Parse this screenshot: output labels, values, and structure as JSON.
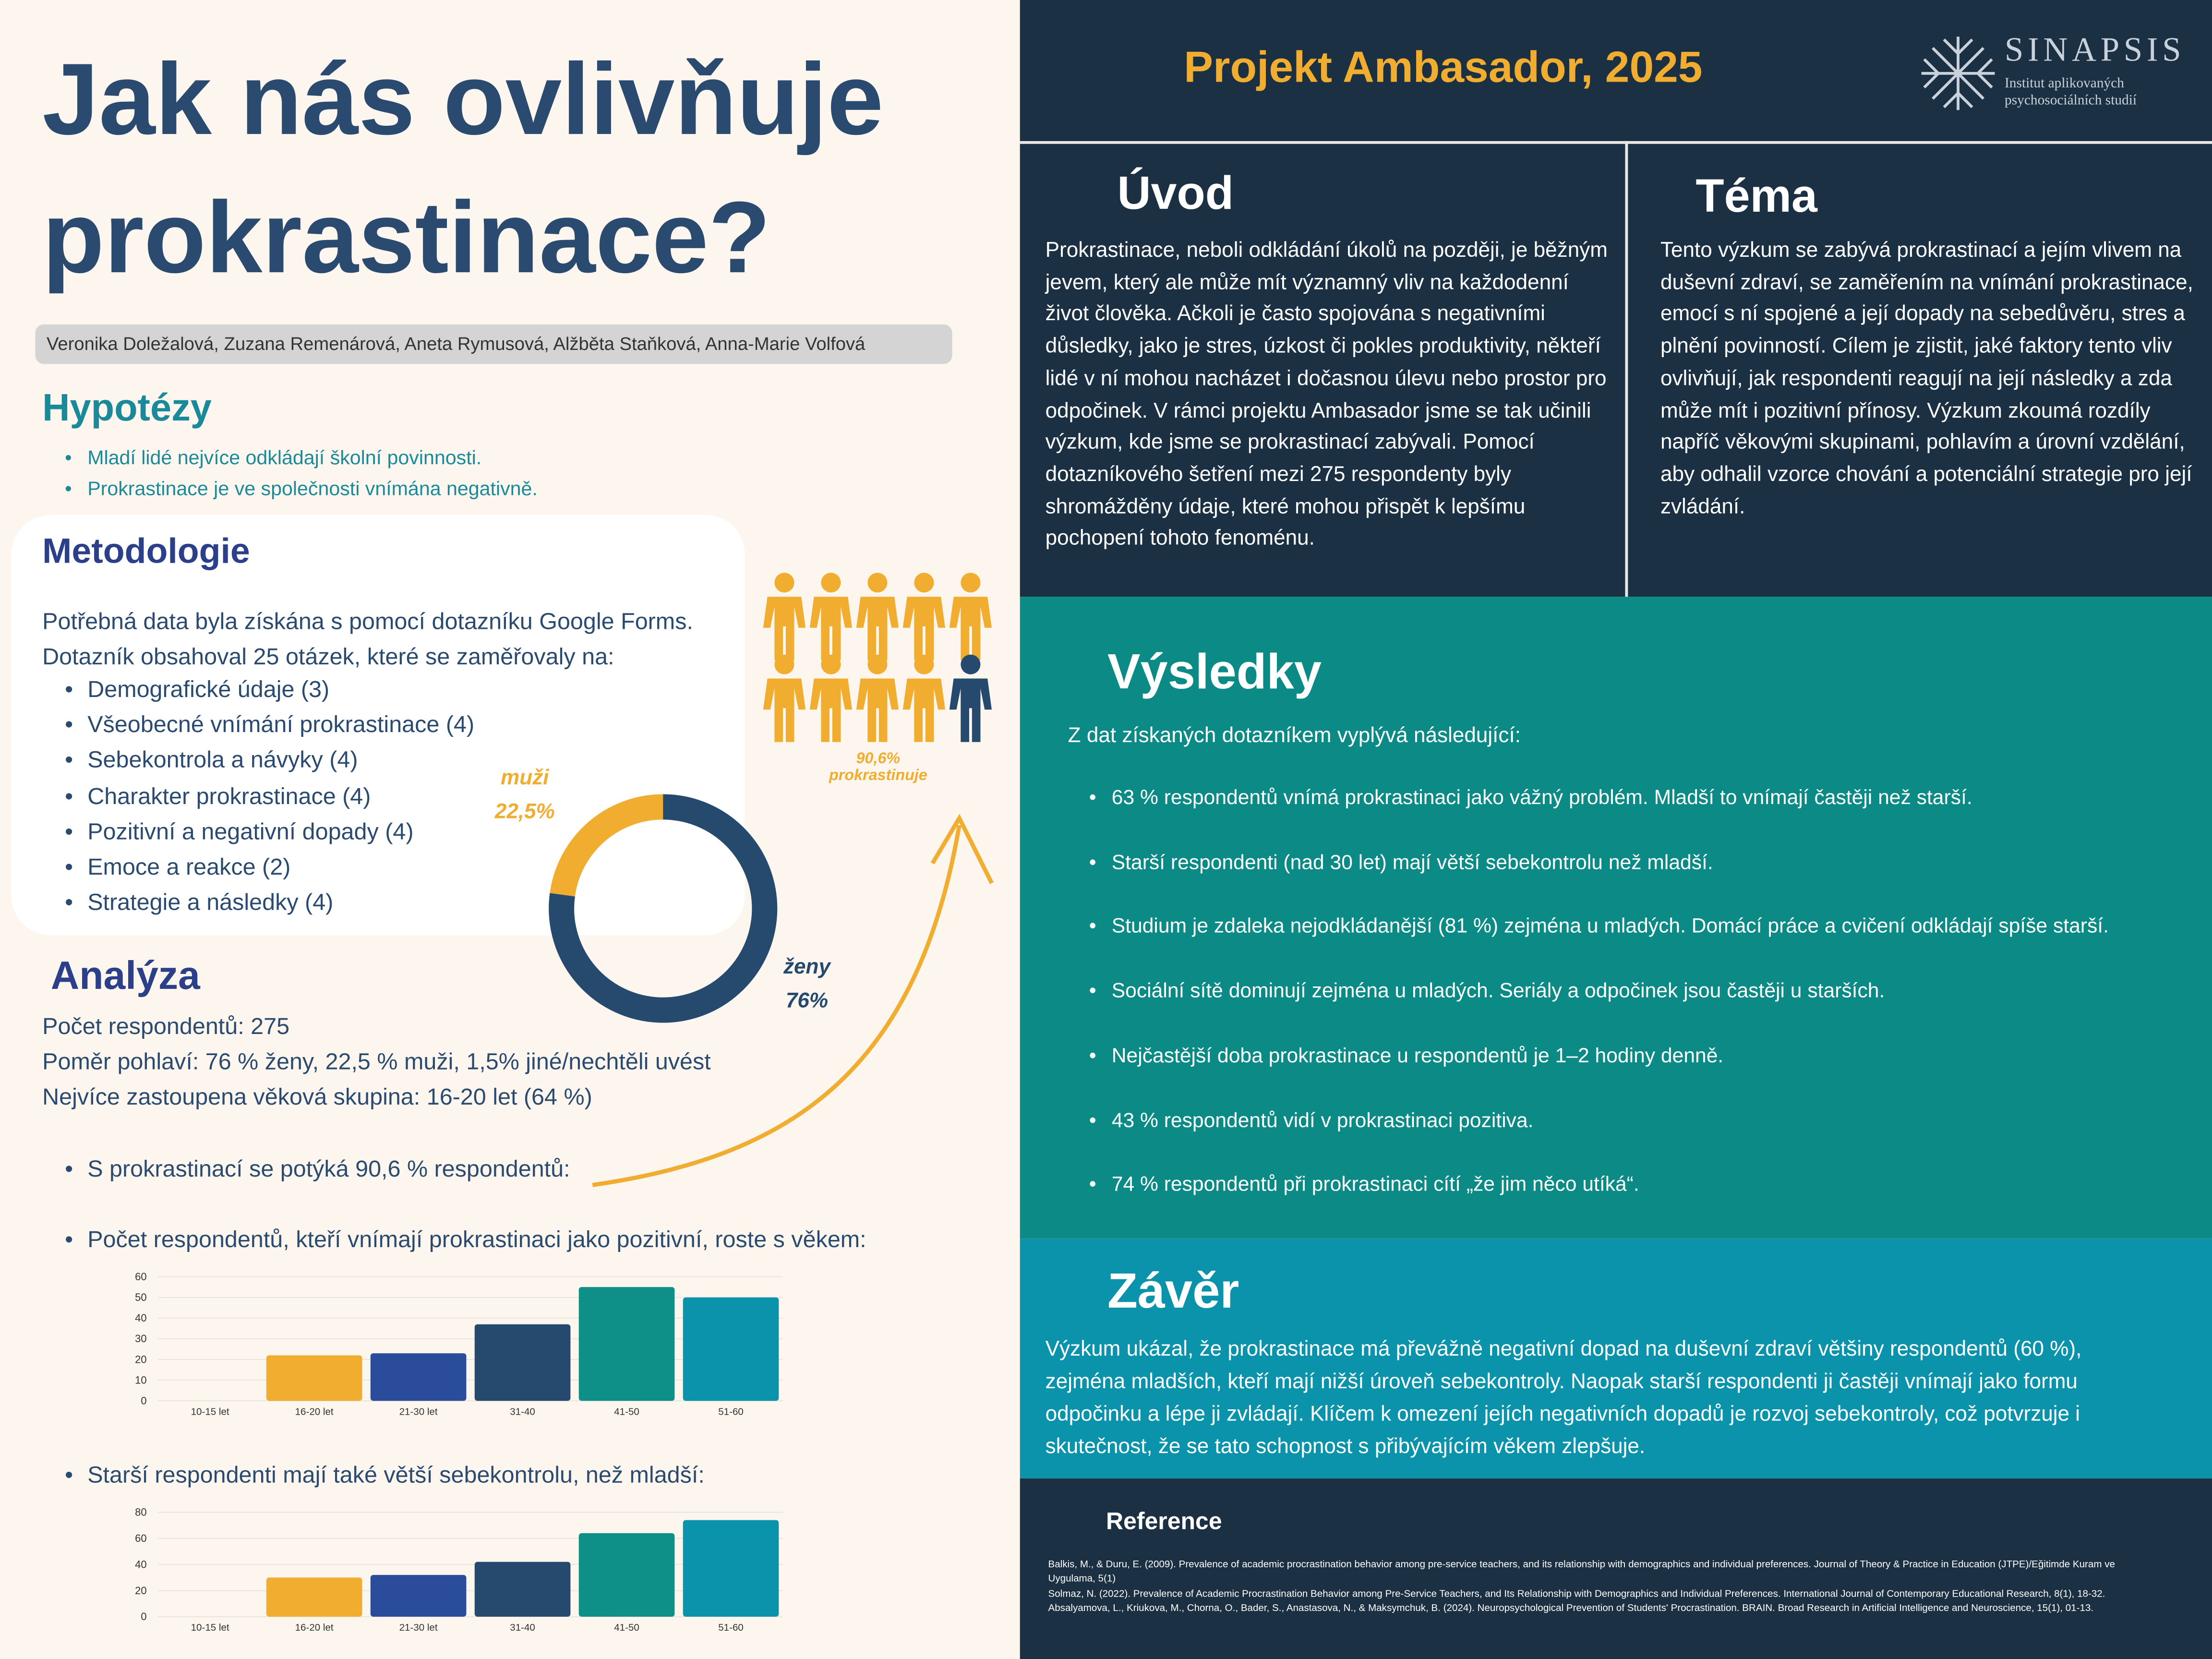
{
  "title": "Jak nás ovlivňuje prokrastinace?",
  "authors": "Veronika Doležalová, Zuzana Remenárová, Aneta Rymusová, Alžběta  Staňková, Anna-Marie Volfová",
  "hypotheses": {
    "heading": "Hypotézy",
    "items": [
      "Mladí lidé nejvíce odkládají školní povinnosti.",
      "Prokrastinace je ve společnosti vnímána negativně."
    ]
  },
  "methodology": {
    "heading": "Metodologie",
    "intro": "Potřebná data byla získána s pomocí dotazníku Google Forms. Dotazník obsahoval 25 otázek, které se zaměřovaly na:",
    "items": [
      "Demografické údaje (3)",
      "Všeobecné vnímání prokrastinace (4)",
      "Sebekontrola a návyky (4)",
      "Charakter prokrastinace (4)",
      "Pozitivní a negativní dopady (4)",
      "Emoce a reakce (2)",
      "Strategie a následky (4)"
    ]
  },
  "people_note": "90,6% prokrastinuje",
  "analysis": {
    "heading": "Analýza",
    "lines": [
      "Počet respondentů: 275",
      "Poměr pohlaví: 76 % ženy, 22,5 % muži, 1,5% jiné/nechtěli uvést",
      "Nejvíce zastoupena věková skupina: 16-20 let (64 %)"
    ],
    "items": [
      "S prokrastinací se potýká 90,6 % respondentů:"
    ]
  },
  "chart_data": [
    {
      "type": "pie",
      "categories": [
        "muži",
        "ženy"
      ],
      "values": [
        22.5,
        76
      ],
      "value_labels": [
        "22,5%",
        "76%"
      ],
      "colors": [
        "#f0ad2f",
        "#264a6e"
      ]
    },
    {
      "type": "bar",
      "title": "Počet respondentů, kteří vnímají prokrastinaci jako pozitivní, roste s věkem:",
      "categories": [
        "10-15 let",
        "16-20 let",
        "21-30 let",
        "31-40",
        "41-50",
        "51-60"
      ],
      "values": [
        0,
        22,
        23,
        37,
        55,
        50
      ],
      "colors": [
        "#f0ad2f",
        "#f0ad2f",
        "#2b4b9b",
        "#264a6e",
        "#0e8f88",
        "#0b93ac"
      ],
      "ylim": [
        0,
        60
      ],
      "yticks": [
        0,
        10,
        20,
        30,
        40,
        50,
        60
      ],
      "grid": true
    },
    {
      "type": "bar",
      "title": "Starší respondenti mají také větší sebekontrolu, než mladší:",
      "categories": [
        "10-15 let",
        "16-20 let",
        "21-30 let",
        "31-40",
        "41-50",
        "51-60"
      ],
      "values": [
        0,
        30,
        32,
        42,
        64,
        74
      ],
      "colors": [
        "#f0ad2f",
        "#f0ad2f",
        "#2b4b9b",
        "#264a6e",
        "#0e8f88",
        "#0b93ac"
      ],
      "ylim": [
        0,
        80
      ],
      "yticks": [
        0,
        20,
        40,
        60,
        80
      ],
      "grid": true
    }
  ],
  "project": "Projekt Ambasador, 2025",
  "logo": {
    "name": "SINAPSIS",
    "subtitle": "Institut aplikovaných psychosociálních studií"
  },
  "intro": {
    "heading": "Úvod",
    "text": "Prokrastinace, neboli odkládání úkolů na později, je běžným jevem, který ale  může mít významný vliv na každodenní život člověka. Ačkoli je často spojována s negativními důsledky, jako je stres, úzkost či pokles produktivity, někteří lidé v ní mohou nacházet i dočasnou úlevu nebo prostor pro odpočinek.  V rámci projektu Ambasador jsme se tak učinili výzkum, kde jsme se prokrastinací zabývali. Pomocí dotazníkového šetření mezi 275 respondenty byly shromážděny údaje, které mohou přispět k lepšímu pochopení tohoto fenoménu."
  },
  "topic": {
    "heading": "Téma",
    "text": "Tento výzkum se zabývá prokrastinací a jejím vlivem na duševní zdraví, se zaměřením na vnímání prokrastinace, emocí s ní spojené a její dopady na sebedůvěru, stres a plnění povinností. Cílem je zjistit, jaké faktory tento vliv ovlivňují, jak respondenti reagují na její následky a zda může mít i pozitivní přínosy. Výzkum zkoumá rozdíly napříč věkovými skupinami, pohlavím a úrovní vzdělání, aby odhalil vzorce chování a potenciální strategie pro její zvládání."
  },
  "results": {
    "heading": "Výsledky",
    "intro": "Z dat získaných dotazníkem vyplývá následující:",
    "items": [
      " 63 % respondentů vnímá prokrastinaci jako vážný problém. Mladší to vnímají častěji než starší.",
      "Starší respondenti (nad 30 let) mají větší sebekontrolu než mladší.",
      "Studium je zdaleka nejodkládanější (81 %) zejména u mladých. Domácí práce a cvičení odkládají spíše starší.",
      "Sociální sítě dominují zejména u mladých. Seriály a odpočinek jsou častěji u starších.",
      "Nejčastější doba prokrastinace u respondentů je 1–2 hodiny denně.",
      "43 % respondentů vidí v prokrastinaci pozitiva.",
      "74 % respondentů  při prokrastinaci cítí „že jim něco utíká“."
    ]
  },
  "conclusion": {
    "heading": "Závěr",
    "text": "Výzkum ukázal, že prokrastinace má převážně negativní dopad na duševní zdraví většiny respondentů (60 %), zejména mladších, kteří mají nižší úroveň sebekontroly. Naopak starší respondenti ji častěji vnímají jako formu odpočinku a lépe ji zvládají. Klíčem k omezení jejích negativních dopadů je rozvoj sebekontroly, což potvrzuje i skutečnost, že se tato schopnost s přibývajícím věkem zlepšuje."
  },
  "references": {
    "heading": "Reference",
    "items": [
      "Balkis, M., & Duru, E. (2009). Prevalence of academic procrastination behavior among pre-service teachers, and its relationship with demographics and individual preferences. Journal of Theory & Practice in Education (JTPE)/Eğitimde Kuram ve Uygulama, 5(1)",
      "Solmaz, N. (2022). Prevalence of Academic Procrastination Behavior among Pre-Service Teachers, and Its Relationship with Demographics and Individual Preferences. International Journal of Contemporary Educational Research, 8(1), 18-32.",
      "Absalyamova, L., Kriukova, M., Chorna, O., Bader, S., Anastasova, N., & Maksymchuk, B. (2024). Neuropsychological Prevention of Students' Procrastination. BRAIN. Broad Research in Artificial Intelligence and Neuroscience, 15(1), 01-13."
    ]
  }
}
